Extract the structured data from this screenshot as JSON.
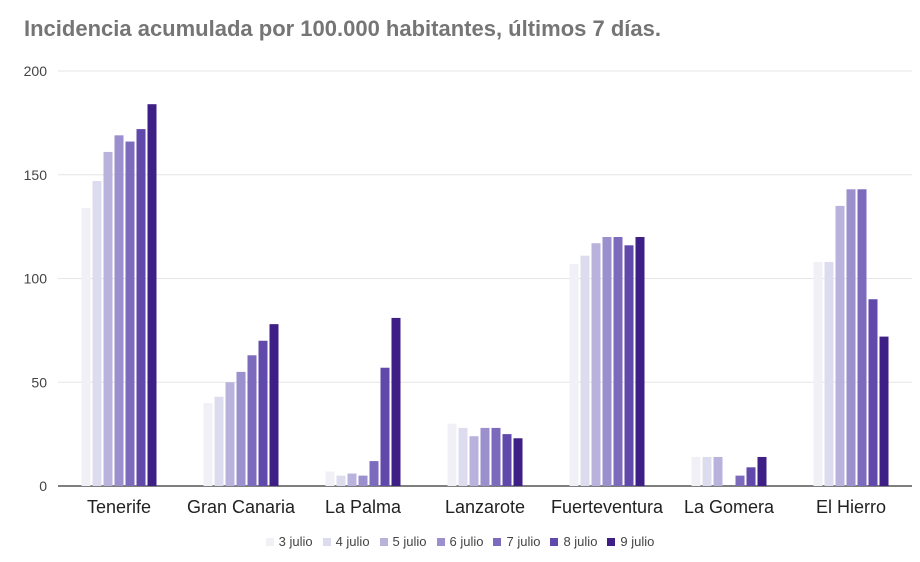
{
  "chart_data": {
    "type": "bar",
    "title": "Incidencia acumulada por 100.000 habitantes, últimos 7 días.",
    "xlabel": "",
    "ylabel": "",
    "ylim": [
      0,
      200
    ],
    "yticks": [
      0,
      50,
      100,
      150,
      200
    ],
    "grid": true,
    "legend_position": "bottom",
    "categories": [
      "Tenerife",
      "Gran Canaria",
      "La Palma",
      "Lanzarote",
      "Fuerteventura",
      "La Gomera",
      "El Hierro"
    ],
    "series": [
      {
        "name": "3 julio",
        "color": "#f1f0f6",
        "values": [
          134,
          40,
          7,
          30,
          107,
          14,
          108
        ]
      },
      {
        "name": "4 julio",
        "color": "#dddcef",
        "values": [
          147,
          43,
          5,
          28,
          111,
          14,
          108
        ]
      },
      {
        "name": "5 julio",
        "color": "#b8b2dc",
        "values": [
          161,
          50,
          6,
          24,
          117,
          14,
          135
        ]
      },
      {
        "name": "6 julio",
        "color": "#9b8fce",
        "values": [
          169,
          55,
          5,
          28,
          120,
          0,
          143
        ]
      },
      {
        "name": "7 julio",
        "color": "#7c6abd",
        "values": [
          166,
          63,
          12,
          28,
          120,
          5,
          143
        ]
      },
      {
        "name": "8 julio",
        "color": "#6148ab",
        "values": [
          172,
          70,
          57,
          25,
          116,
          9,
          90
        ]
      },
      {
        "name": "9 julio",
        "color": "#3e1f85",
        "values": [
          184,
          78,
          81,
          23,
          120,
          14,
          72
        ]
      }
    ]
  }
}
